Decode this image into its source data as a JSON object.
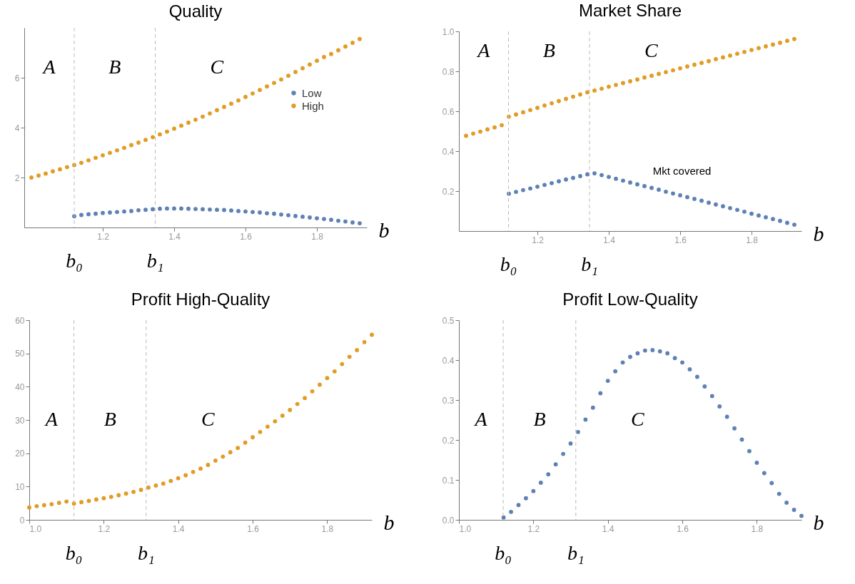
{
  "chart_data": [
    {
      "type": "scatter",
      "title": "Quality",
      "xlabel": "b",
      "xlim": [
        0.98,
        1.94
      ],
      "ylim": [
        0,
        8
      ],
      "xticks": [
        1.2,
        1.4,
        1.6,
        1.8
      ],
      "yticks": [
        2,
        4,
        6
      ],
      "grid": false,
      "legend": "top right",
      "marker": "circle",
      "series": [
        {
          "name": "Low",
          "color": "#5e81b5",
          "x": [
            1.12,
            1.14,
            1.16,
            1.18,
            1.2,
            1.22,
            1.24,
            1.26,
            1.28,
            1.3,
            1.32,
            1.34,
            1.36,
            1.38,
            1.4,
            1.42,
            1.44,
            1.46,
            1.48,
            1.5,
            1.52,
            1.54,
            1.56,
            1.58,
            1.6,
            1.62,
            1.64,
            1.66,
            1.68,
            1.7,
            1.72,
            1.74,
            1.76,
            1.78,
            1.8,
            1.82,
            1.84,
            1.86,
            1.88,
            1.9,
            1.92
          ],
          "values": [
            0.45,
            0.5,
            0.53,
            0.55,
            0.58,
            0.6,
            0.62,
            0.64,
            0.66,
            0.69,
            0.71,
            0.73,
            0.75,
            0.76,
            0.76,
            0.76,
            0.75,
            0.74,
            0.73,
            0.72,
            0.71,
            0.7,
            0.68,
            0.66,
            0.64,
            0.62,
            0.6,
            0.57,
            0.55,
            0.52,
            0.49,
            0.46,
            0.43,
            0.4,
            0.37,
            0.34,
            0.31,
            0.27,
            0.24,
            0.2,
            0.17
          ]
        },
        {
          "name": "High",
          "color": "#e19c24",
          "x": [
            1.0,
            1.02,
            1.04,
            1.06,
            1.08,
            1.1,
            1.12,
            1.14,
            1.16,
            1.18,
            1.2,
            1.22,
            1.24,
            1.26,
            1.28,
            1.3,
            1.32,
            1.34,
            1.36,
            1.38,
            1.4,
            1.42,
            1.44,
            1.46,
            1.48,
            1.5,
            1.52,
            1.54,
            1.56,
            1.58,
            1.6,
            1.62,
            1.64,
            1.66,
            1.68,
            1.7,
            1.72,
            1.74,
            1.76,
            1.78,
            1.8,
            1.82,
            1.84,
            1.86,
            1.88,
            1.9,
            1.92
          ],
          "values": [
            2.0,
            2.08,
            2.16,
            2.25,
            2.33,
            2.42,
            2.5,
            2.59,
            2.69,
            2.79,
            2.89,
            2.99,
            3.09,
            3.19,
            3.3,
            3.4,
            3.51,
            3.62,
            3.73,
            3.84,
            3.96,
            4.08,
            4.2,
            4.32,
            4.44,
            4.57,
            4.7,
            4.83,
            4.96,
            5.09,
            5.23,
            5.37,
            5.51,
            5.65,
            5.79,
            5.93,
            6.08,
            6.23,
            6.38,
            6.53,
            6.68,
            6.83,
            6.95,
            7.1,
            7.25,
            7.4,
            7.55
          ]
        }
      ],
      "ref_lines": [
        {
          "axis": "x",
          "value": 1.12,
          "label": "b₀",
          "color": "#bbbbbb",
          "line_style": "dashed"
        },
        {
          "axis": "x",
          "value": 1.347,
          "label": "b₁",
          "color": "#bbbbbb",
          "line_style": "dashed"
        }
      ],
      "annotations": [
        "A",
        "B",
        "C"
      ]
    },
    {
      "type": "scatter",
      "title": "Market Share",
      "xlabel": "b",
      "xlim": [
        0.98,
        1.94
      ],
      "ylim": [
        0,
        1
      ],
      "xticks": [
        1.2,
        1.4,
        1.6,
        1.8
      ],
      "yticks": [
        0.2,
        0.4,
        0.6,
        0.8,
        {
          "value": 1,
          "label": "1.0"
        }
      ],
      "grid": false,
      "marker": "circle",
      "series": [
        {
          "color": "#5e81b5",
          "x": [
            1.12,
            1.14,
            1.16,
            1.18,
            1.2,
            1.22,
            1.24,
            1.26,
            1.28,
            1.3,
            1.32,
            1.34,
            1.36,
            1.38,
            1.4,
            1.42,
            1.44,
            1.46,
            1.48,
            1.5,
            1.52,
            1.54,
            1.56,
            1.58,
            1.6,
            1.62,
            1.64,
            1.66,
            1.68,
            1.7,
            1.72,
            1.74,
            1.76,
            1.78,
            1.8,
            1.82,
            1.84,
            1.86,
            1.88,
            1.9,
            1.92
          ],
          "values": [
            0.187,
            0.196,
            0.205,
            0.213,
            0.222,
            0.231,
            0.24,
            0.249,
            0.258,
            0.266,
            0.275,
            0.284,
            0.289,
            0.28,
            0.271,
            0.262,
            0.252,
            0.243,
            0.234,
            0.225,
            0.216,
            0.207,
            0.197,
            0.188,
            0.179,
            0.17,
            0.161,
            0.152,
            0.142,
            0.133,
            0.124,
            0.115,
            0.106,
            0.097,
            0.087,
            0.078,
            0.069,
            0.06,
            0.051,
            0.041,
            0.032
          ]
        },
        {
          "color": "#e19c24",
          "x": [
            1.0,
            1.02,
            1.04,
            1.06,
            1.08,
            1.1,
            1.12,
            1.14,
            1.16,
            1.18,
            1.2,
            1.22,
            1.24,
            1.26,
            1.28,
            1.3,
            1.32,
            1.34,
            1.36,
            1.38,
            1.4,
            1.42,
            1.44,
            1.46,
            1.48,
            1.5,
            1.52,
            1.54,
            1.56,
            1.58,
            1.6,
            1.62,
            1.64,
            1.66,
            1.68,
            1.7,
            1.72,
            1.74,
            1.76,
            1.78,
            1.8,
            1.82,
            1.84,
            1.86,
            1.88,
            1.9,
            1.92
          ],
          "values": [
            0.477,
            0.488,
            0.498,
            0.509,
            0.519,
            0.53,
            0.573,
            0.584,
            0.595,
            0.606,
            0.617,
            0.629,
            0.64,
            0.651,
            0.662,
            0.673,
            0.684,
            0.695,
            0.704,
            0.713,
            0.723,
            0.732,
            0.741,
            0.75,
            0.759,
            0.769,
            0.778,
            0.787,
            0.796,
            0.805,
            0.815,
            0.824,
            0.833,
            0.842,
            0.851,
            0.861,
            0.87,
            0.879,
            0.888,
            0.897,
            0.907,
            0.916,
            0.925,
            0.934,
            0.943,
            0.953,
            0.962
          ]
        }
      ],
      "ref_lines": [
        {
          "axis": "x",
          "value": 1.119,
          "label": "b₀",
          "color": "#bbbbbb",
          "line_style": "dashed"
        },
        {
          "axis": "x",
          "value": 1.346,
          "label": "b₁",
          "color": "#bbbbbb",
          "line_style": "dashed"
        }
      ],
      "annotations": [
        "A",
        "B",
        "C",
        "Mkt covered"
      ]
    },
    {
      "type": "scatter",
      "title": "Profit High-Quality",
      "xlabel": "b",
      "xlim": [
        1.0,
        1.92
      ],
      "ylim": [
        0,
        60
      ],
      "xticks": [
        {
          "value": 1,
          "label": "1.0"
        },
        1.2,
        1.4,
        1.6,
        1.8
      ],
      "yticks": [
        0,
        10,
        20,
        30,
        40,
        50,
        60
      ],
      "grid": false,
      "marker": "circle",
      "series": [
        {
          "color": "#e19c24",
          "x": [
            1.0,
            1.02,
            1.04,
            1.06,
            1.08,
            1.1,
            1.12,
            1.14,
            1.16,
            1.18,
            1.2,
            1.22,
            1.24,
            1.26,
            1.28,
            1.3,
            1.32,
            1.34,
            1.36,
            1.38,
            1.4,
            1.42,
            1.44,
            1.46,
            1.48,
            1.5,
            1.52,
            1.54,
            1.56,
            1.58,
            1.6,
            1.62,
            1.64,
            1.66,
            1.68,
            1.7,
            1.72,
            1.74,
            1.76,
            1.78,
            1.8,
            1.82,
            1.84,
            1.86,
            1.88,
            1.9,
            1.92
          ],
          "values": [
            3.7,
            4.1,
            4.4,
            4.7,
            5.1,
            5.5,
            4.9,
            5.3,
            5.7,
            6.1,
            6.5,
            6.9,
            7.4,
            7.9,
            8.4,
            9.0,
            9.7,
            10.3,
            10.9,
            11.7,
            12.5,
            13.4,
            14.4,
            15.4,
            16.5,
            17.8,
            19.0,
            20.3,
            21.6,
            23.2,
            24.8,
            26.4,
            28.0,
            29.6,
            31.3,
            33.0,
            34.8,
            36.6,
            38.6,
            40.6,
            42.6,
            44.6,
            46.8,
            49.0,
            51.0,
            53.4,
            55.6
          ]
        }
      ],
      "ref_lines": [
        {
          "axis": "x",
          "value": 1.12,
          "label": "b₀",
          "color": "#bbbbbb",
          "line_style": "dashed"
        },
        {
          "axis": "x",
          "value": 1.314,
          "label": "b₁",
          "color": "#bbbbbb",
          "line_style": "dashed"
        }
      ],
      "annotations": [
        "A",
        "B",
        "C"
      ]
    },
    {
      "type": "scatter",
      "title": "Profit Low-Quality",
      "xlabel": "b",
      "xlim": [
        1.0,
        1.92
      ],
      "ylim": [
        0,
        0.5
      ],
      "xticks": [
        {
          "value": 1,
          "label": "1.0"
        },
        1.2,
        1.4,
        1.6,
        1.8
      ],
      "yticks": [
        {
          "value": 0,
          "label": "0.0"
        },
        0.1,
        0.2,
        0.3,
        0.4,
        0.5
      ],
      "grid": false,
      "marker": "circle",
      "series": [
        {
          "color": "#5e81b5",
          "x": [
            1.12,
            1.14,
            1.16,
            1.18,
            1.2,
            1.22,
            1.24,
            1.26,
            1.28,
            1.3,
            1.32,
            1.34,
            1.36,
            1.38,
            1.4,
            1.42,
            1.44,
            1.46,
            1.48,
            1.5,
            1.52,
            1.54,
            1.56,
            1.58,
            1.6,
            1.62,
            1.64,
            1.66,
            1.68,
            1.7,
            1.72,
            1.74,
            1.76,
            1.78,
            1.8,
            1.82,
            1.84,
            1.86,
            1.88,
            1.9,
            1.92
          ],
          "values": [
            0.006,
            0.02,
            0.037,
            0.054,
            0.072,
            0.093,
            0.114,
            0.139,
            0.165,
            0.191,
            0.22,
            0.251,
            0.281,
            0.317,
            0.348,
            0.372,
            0.394,
            0.408,
            0.417,
            0.424,
            0.425,
            0.422,
            0.417,
            0.405,
            0.394,
            0.377,
            0.358,
            0.334,
            0.31,
            0.284,
            0.258,
            0.229,
            0.201,
            0.172,
            0.143,
            0.117,
            0.092,
            0.065,
            0.043,
            0.025,
            0.01
          ]
        }
      ],
      "ref_lines": [
        {
          "axis": "x",
          "value": 1.119,
          "label": "b₀",
          "color": "#bbbbbb",
          "line_style": "dashed"
        },
        {
          "axis": "x",
          "value": 1.314,
          "label": "b₁",
          "color": "#bbbbbb",
          "line_style": "dashed"
        }
      ],
      "annotations": [
        "A",
        "B",
        "C"
      ]
    }
  ]
}
